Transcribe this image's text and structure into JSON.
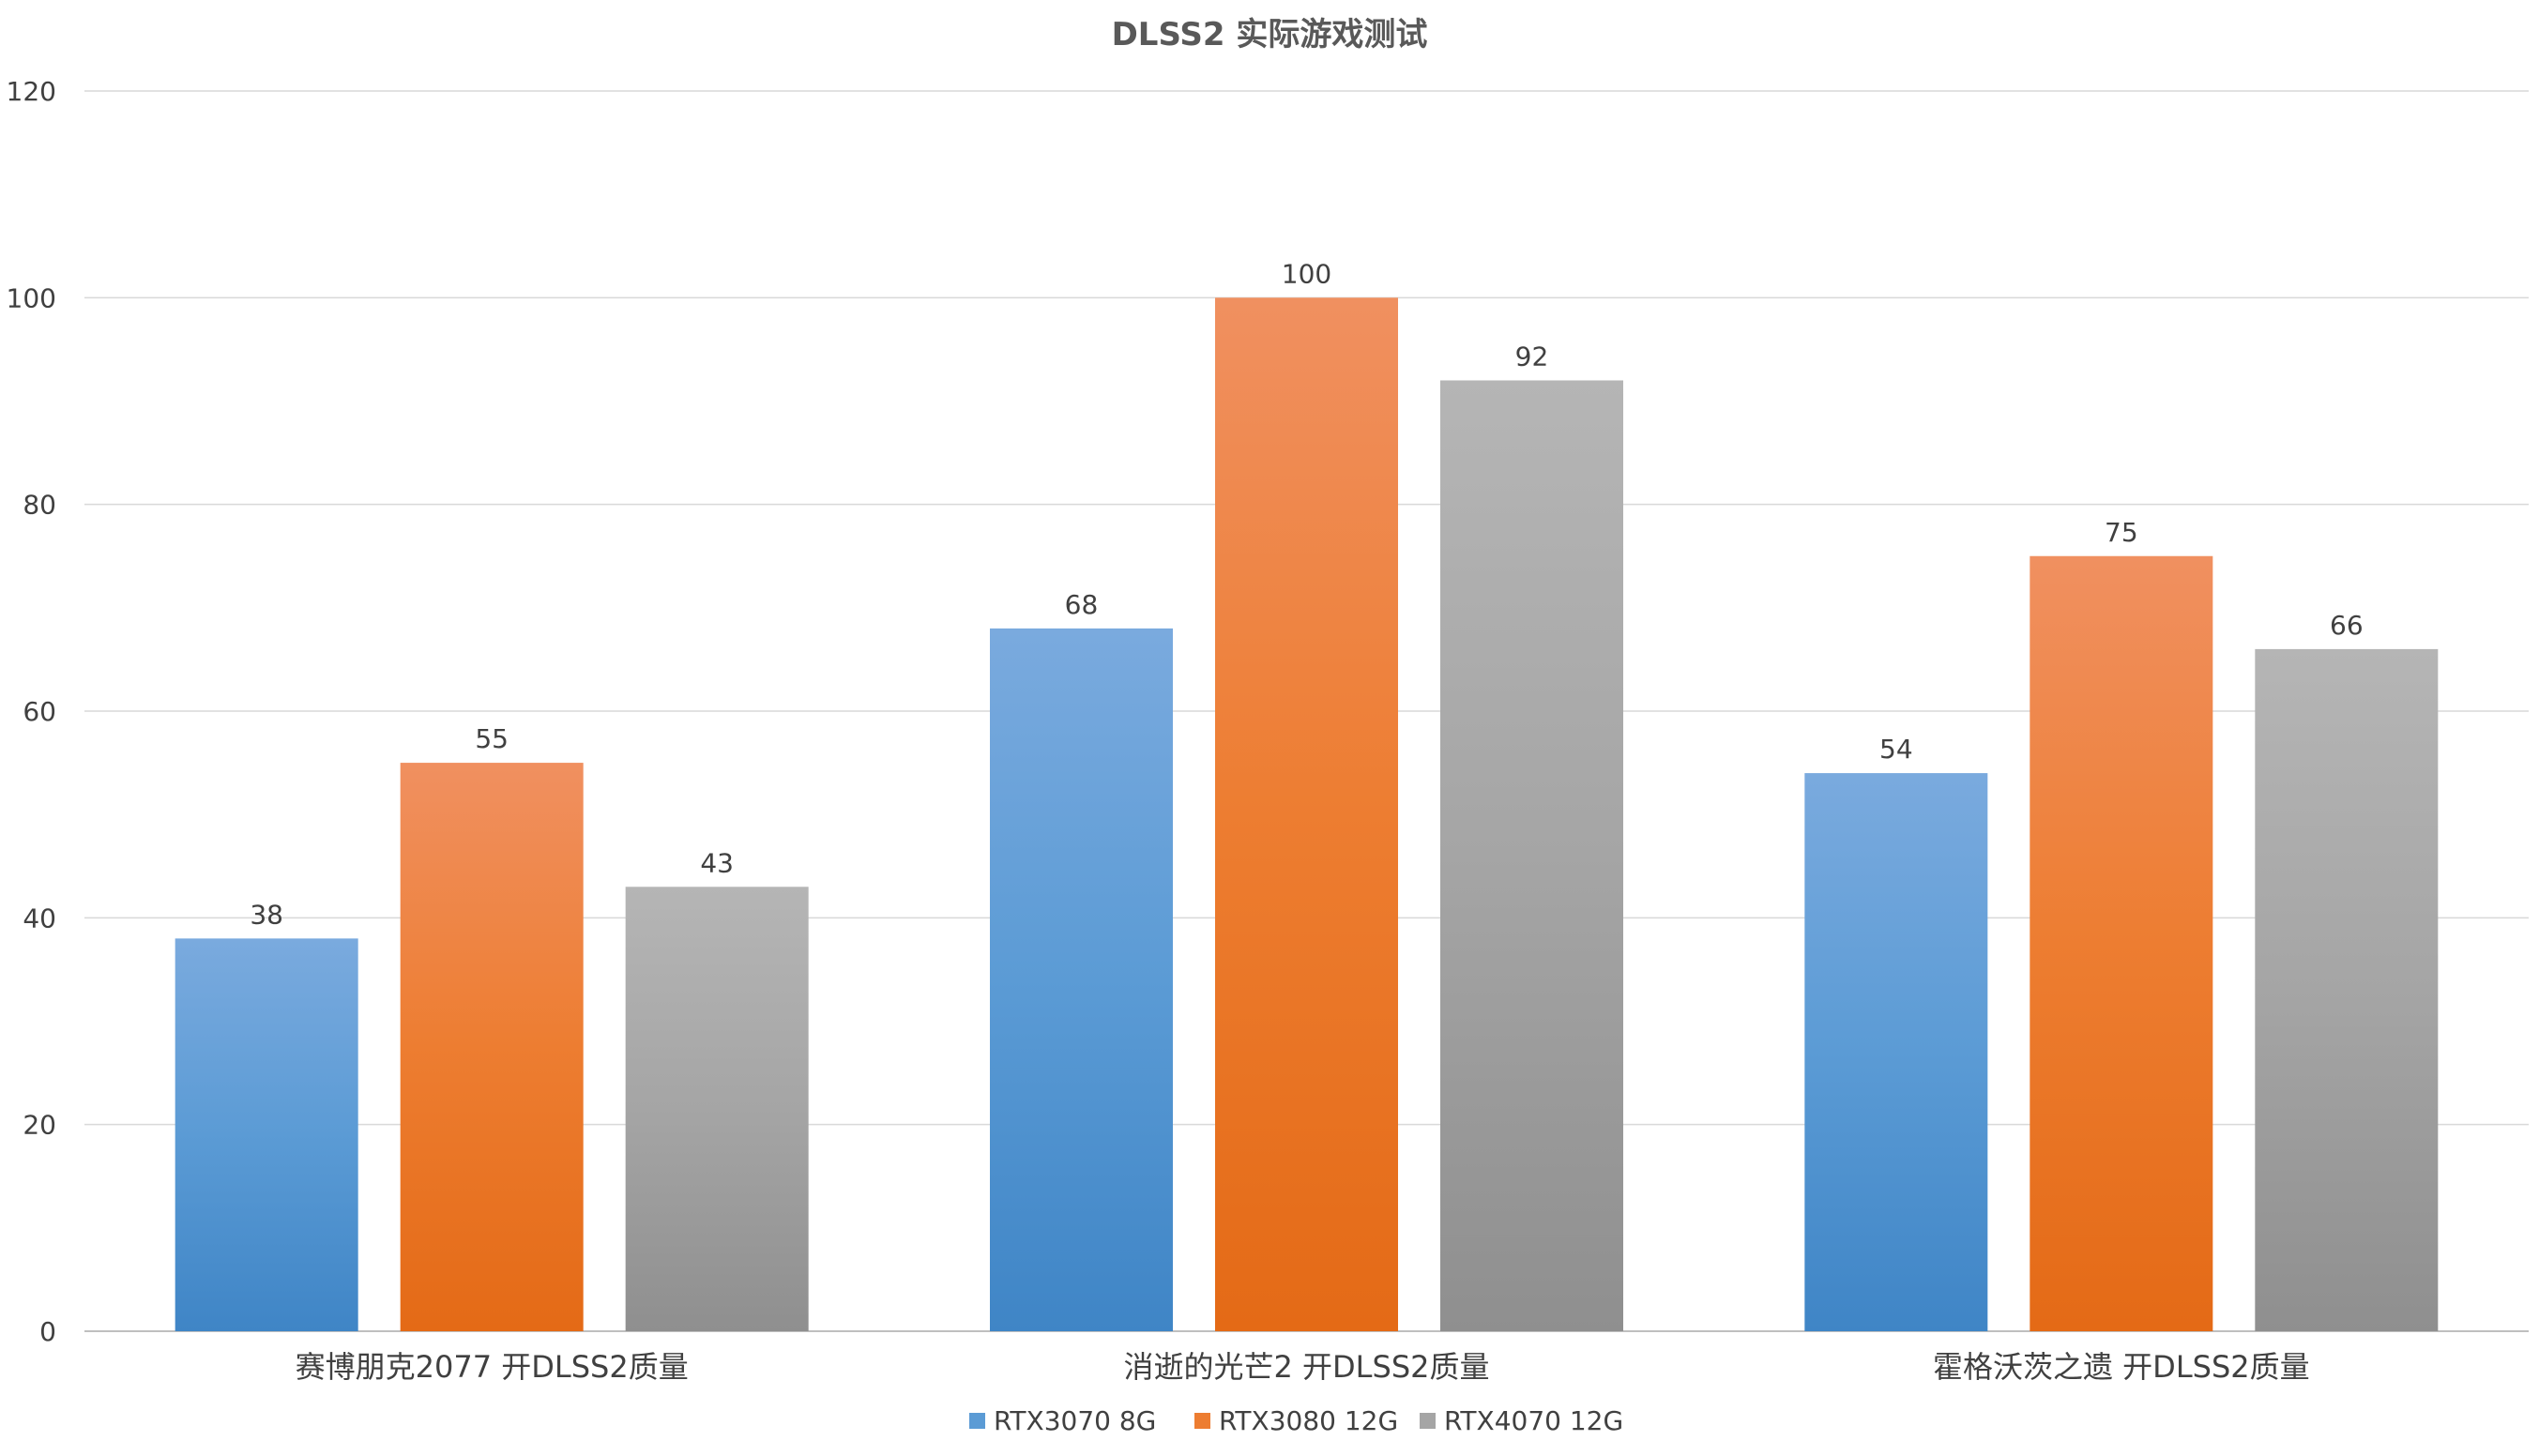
{
  "chart_data": {
    "type": "bar",
    "title": "DLSS2 实际游戏测试",
    "xlabel": "",
    "ylabel": "",
    "ylim": [
      0,
      120
    ],
    "yticks": [
      0,
      20,
      40,
      60,
      80,
      100,
      120
    ],
    "grid": true,
    "legend_position": "bottom",
    "categories": [
      "赛博朋克2077 开DLSS2质量",
      "消逝的光芒2 开DLSS2质量",
      "霍格沃茨之遗 开DLSS2质量"
    ],
    "series": [
      {
        "name": "RTX3070 8G",
        "values": [
          38,
          68,
          54
        ],
        "color": "#5b9bd5",
        "color_top": "#7aaade",
        "color_bottom": "#3f85c6"
      },
      {
        "name": "RTX3080 12G",
        "values": [
          55,
          100,
          75
        ],
        "color": "#ed7d31",
        "color_top": "#f09060",
        "color_bottom": "#e46a16"
      },
      {
        "name": "RTX4070 12G",
        "values": [
          43,
          92,
          66
        ],
        "color": "#a5a5a5",
        "color_top": "#b5b5b5",
        "color_bottom": "#8f8f8f"
      }
    ]
  }
}
